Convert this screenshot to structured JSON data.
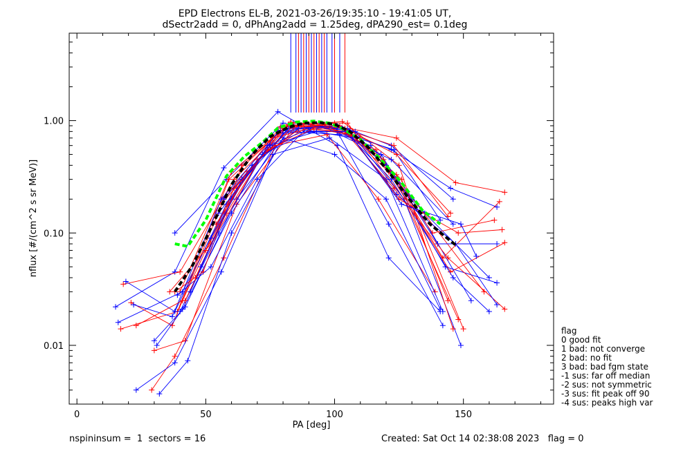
{
  "chart_data": {
    "type": "line",
    "title": "EPD Electrons EL-B, 2021-03-26/19:35:10 - 19:41:05 UT,",
    "subtitle": "dSectr2add = 0, dPhAng2add = 1.25deg, dPA290_est=   0.1deg",
    "xlabel": "PA [deg]",
    "ylabel": "nflux [#/(cm^2 s sr MeV)]",
    "xlim": [
      -3,
      185
    ],
    "ylim": [
      0.003,
      6.0
    ],
    "yscale": "log",
    "x_ticks": [
      0,
      50,
      100,
      150
    ],
    "x_tick_labels": [
      "0",
      "50",
      "100",
      "150"
    ],
    "y_ticks": [
      0.01,
      0.1,
      1.0
    ],
    "y_tick_labels": [
      "0.01",
      "0.10",
      "1.00"
    ],
    "grid": false,
    "colors": {
      "blue": "#0000ff",
      "red": "#ff0000",
      "green": "#00ff00",
      "black": "#000000"
    },
    "fit_lines": [
      {
        "color": "#00ff00",
        "style": "dashed",
        "x": [
          38,
          43,
          50,
          58,
          65,
          72,
          78,
          85,
          92,
          98,
          103,
          110,
          118,
          126,
          134,
          141
        ],
        "y": [
          0.08,
          0.076,
          0.13,
          0.32,
          0.48,
          0.64,
          0.86,
          0.97,
          0.99,
          0.95,
          0.85,
          0.68,
          0.45,
          0.28,
          0.16,
          0.12
        ]
      },
      {
        "color": "#000000",
        "style": "dashed",
        "x": [
          38,
          45,
          52,
          60,
          68,
          75,
          82,
          88,
          94,
          100,
          106,
          113,
          121,
          129,
          137,
          147
        ],
        "y": [
          0.03,
          0.052,
          0.11,
          0.27,
          0.5,
          0.72,
          0.87,
          0.95,
          0.96,
          0.93,
          0.8,
          0.58,
          0.35,
          0.2,
          0.12,
          0.078
        ]
      }
    ],
    "top_tick_x": [
      83,
      85,
      86,
      87,
      88,
      89,
      90,
      91,
      92,
      93,
      94,
      95,
      96,
      97,
      99,
      100,
      102,
      104
    ],
    "top_tick_colors": [
      "blue",
      "blue",
      "red",
      "blue",
      "red",
      "blue",
      "red",
      "blue",
      "red",
      "blue",
      "red",
      "blue",
      "red",
      "blue",
      "blue",
      "red",
      "blue",
      "red"
    ],
    "series": [
      {
        "color": "#0000ff",
        "x": [
          38,
          58,
          80,
          104,
          122,
          145,
          163
        ],
        "y": [
          0.1,
          0.3,
          0.95,
          0.8,
          0.55,
          0.25,
          0.17
        ]
      },
      {
        "color": "#ff0000",
        "x": [
          40,
          60,
          82,
          106,
          124,
          147,
          166
        ],
        "y": [
          0.03,
          0.35,
          0.92,
          0.85,
          0.7,
          0.28,
          0.23
        ]
      },
      {
        "color": "#0000ff",
        "x": [
          16,
          41,
          62,
          84,
          105,
          127,
          149
        ],
        "y": [
          0.016,
          0.03,
          0.25,
          0.95,
          0.85,
          0.2,
          0.01
        ]
      },
      {
        "color": "#ff0000",
        "x": [
          17,
          39,
          59,
          83,
          104,
          124,
          144
        ],
        "y": [
          0.014,
          0.02,
          0.3,
          0.97,
          0.85,
          0.33,
          0.025
        ]
      },
      {
        "color": "#0000ff",
        "x": [
          15,
          38,
          57,
          78,
          101,
          121,
          141
        ],
        "y": [
          0.022,
          0.045,
          0.38,
          1.2,
          0.6,
          0.06,
          0.02
        ]
      },
      {
        "color": "#ff0000",
        "x": [
          18,
          40,
          61,
          82,
          103,
          125,
          146
        ],
        "y": [
          0.035,
          0.045,
          0.3,
          0.9,
          0.98,
          0.4,
          0.014
        ]
      },
      {
        "color": "#0000ff",
        "x": [
          19,
          38,
          58,
          80,
          102,
          122,
          146
        ],
        "y": [
          0.037,
          0.02,
          0.18,
          0.85,
          0.9,
          0.6,
          0.2
        ]
      },
      {
        "color": "#ff0000",
        "x": [
          21,
          37,
          57,
          79,
          100,
          123,
          144
        ],
        "y": [
          0.024,
          0.015,
          0.2,
          0.88,
          0.9,
          0.6,
          0.14
        ]
      },
      {
        "color": "#0000ff",
        "x": [
          22,
          37,
          56,
          79,
          101,
          123,
          141
        ],
        "y": [
          0.023,
          0.018,
          0.2,
          0.82,
          0.8,
          0.55,
          0.13
        ]
      },
      {
        "color": "#ff0000",
        "x": [
          23,
          41,
          61,
          82,
          104,
          124,
          145
        ],
        "y": [
          0.015,
          0.025,
          0.25,
          0.9,
          0.85,
          0.5,
          0.15
        ]
      },
      {
        "color": "#0000ff",
        "x": [
          30,
          42,
          62,
          82,
          102,
          122,
          146
        ],
        "y": [
          0.011,
          0.022,
          0.2,
          0.8,
          0.75,
          0.45,
          0.12
        ]
      },
      {
        "color": "#ff0000",
        "x": [
          30,
          42,
          62,
          84,
          105,
          126,
          150
        ],
        "y": [
          0.009,
          0.011,
          0.18,
          0.85,
          0.8,
          0.3,
          0.014
        ]
      },
      {
        "color": "#0000ff",
        "x": [
          31,
          41,
          60,
          80,
          101,
          121,
          142
        ],
        "y": [
          0.01,
          0.021,
          0.15,
          0.78,
          0.8,
          0.12,
          0.015
        ]
      },
      {
        "color": "#ff0000",
        "x": [
          29,
          38,
          57,
          77,
          97,
          117,
          139
        ],
        "y": [
          0.004,
          0.008,
          0.06,
          0.6,
          0.75,
          0.2,
          0.03
        ]
      },
      {
        "color": "#0000ff",
        "x": [
          23,
          38,
          56,
          76,
          98,
          120,
          142
        ],
        "y": [
          0.004,
          0.007,
          0.045,
          0.5,
          0.7,
          0.3,
          0.02
        ]
      },
      {
        "color": "#0000ff",
        "x": [
          32,
          43,
          60,
          80,
          100,
          120,
          141
        ],
        "y": [
          0.0037,
          0.0073,
          0.1,
          0.7,
          0.5,
          0.2,
          0.021
        ]
      },
      {
        "color": "#ff0000",
        "x": [
          38,
          49,
          64,
          83,
          105,
          127,
          148
        ],
        "y": [
          0.03,
          0.045,
          0.4,
          0.95,
          0.95,
          0.2,
          0.017
        ]
      },
      {
        "color": "#0000ff",
        "x": [
          39,
          52,
          70,
          90,
          108,
          130,
          153
        ],
        "y": [
          0.028,
          0.05,
          0.3,
          0.9,
          0.8,
          0.2,
          0.025
        ]
      },
      {
        "color": "#ff0000",
        "x": [
          36,
          52,
          72,
          92,
          110,
          132,
          158
        ],
        "y": [
          0.03,
          0.08,
          0.5,
          0.95,
          0.7,
          0.18,
          0.03
        ]
      },
      {
        "color": "#0000ff",
        "x": [
          40,
          55,
          74,
          94,
          114,
          135,
          160
        ],
        "y": [
          0.02,
          0.1,
          0.6,
          0.9,
          0.6,
          0.15,
          0.04
        ]
      },
      {
        "color": "#ff0000",
        "x": [
          42,
          58,
          76,
          96,
          116,
          138,
          162
        ],
        "y": [
          0.025,
          0.15,
          0.7,
          0.92,
          0.55,
          0.1,
          0.13
        ]
      },
      {
        "color": "#0000ff",
        "x": [
          44,
          60,
          78,
          98,
          118,
          140,
          163
        ],
        "y": [
          0.03,
          0.2,
          0.8,
          0.9,
          0.5,
          0.08,
          0.08
        ]
      },
      {
        "color": "#ff0000",
        "x": [
          46,
          62,
          80,
          100,
          119,
          142,
          164
        ],
        "y": [
          0.04,
          0.25,
          0.85,
          0.95,
          0.45,
          0.06,
          0.19
        ]
      },
      {
        "color": "#0000ff",
        "x": [
          48,
          64,
          82,
          101,
          120,
          143,
          163
        ],
        "y": [
          0.05,
          0.3,
          0.85,
          0.9,
          0.4,
          0.05,
          0.036
        ]
      },
      {
        "color": "#ff0000",
        "x": [
          50,
          66,
          84,
          102,
          121,
          145,
          166
        ],
        "y": [
          0.07,
          0.35,
          0.9,
          0.9,
          0.35,
          0.045,
          0.082
        ]
      },
      {
        "color": "#0000ff",
        "x": [
          52,
          68,
          86,
          103,
          122,
          146,
          160
        ],
        "y": [
          0.09,
          0.4,
          0.85,
          0.85,
          0.3,
          0.04,
          0.02
        ]
      },
      {
        "color": "#ff0000",
        "x": [
          54,
          70,
          88,
          104,
          123,
          144,
          166
        ],
        "y": [
          0.12,
          0.45,
          0.9,
          0.8,
          0.25,
          0.06,
          0.021
        ]
      },
      {
        "color": "#0000ff",
        "x": [
          55,
          72,
          90,
          105,
          124,
          147,
          163
        ],
        "y": [
          0.15,
          0.5,
          0.8,
          0.8,
          0.22,
          0.08,
          0.023
        ]
      },
      {
        "color": "#ff0000",
        "x": [
          56,
          74,
          92,
          106,
          125,
          148,
          165
        ],
        "y": [
          0.18,
          0.55,
          0.85,
          0.75,
          0.2,
          0.1,
          0.107
        ]
      },
      {
        "color": "#0000ff",
        "x": [
          57,
          75,
          93,
          107,
          126,
          149,
          155
        ],
        "y": [
          0.2,
          0.6,
          0.8,
          0.7,
          0.18,
          0.12,
          0.062
        ]
      }
    ]
  },
  "legend": {
    "title": "flag",
    "entries": [
      " 0 good fit",
      " 1 bad: not converge",
      " 2 bad: no fit",
      " 3 bad: bad fgm state",
      "-1 sus: far off median",
      "-2 sus: not symmetric",
      "-3 sus: fit peak off 90",
      "-4 sus: peaks high var"
    ]
  },
  "footer": {
    "left": "nspininsum =  1  sectors = 16",
    "right": "Created: Sat Oct 14 02:38:08 2023   flag = 0"
  }
}
